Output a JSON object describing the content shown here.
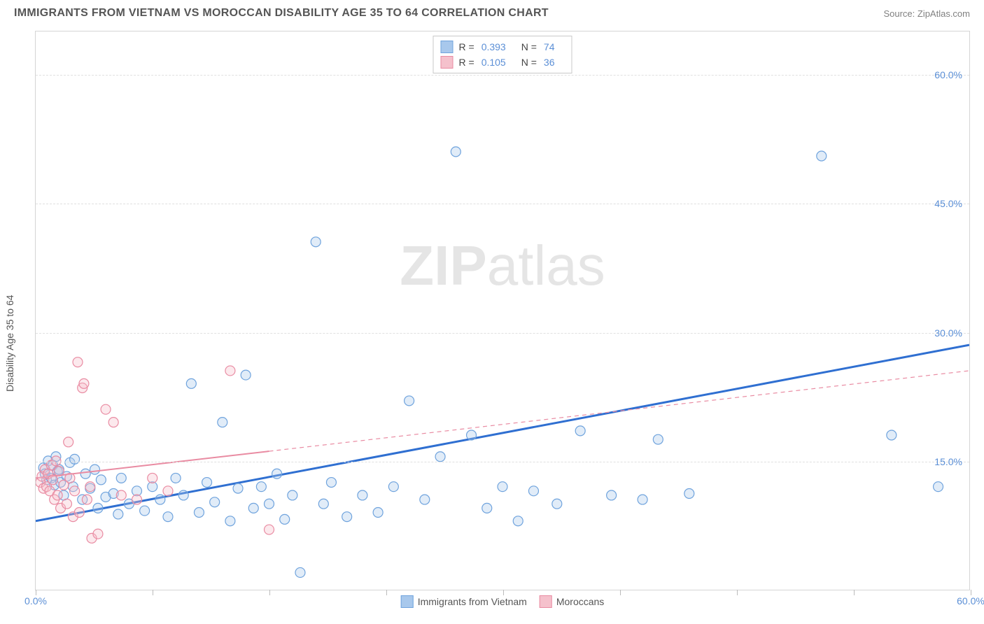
{
  "title": "IMMIGRANTS FROM VIETNAM VS MOROCCAN DISABILITY AGE 35 TO 64 CORRELATION CHART",
  "source_label": "Source: ",
  "source_name": "ZipAtlas.com",
  "y_axis_label": "Disability Age 35 to 64",
  "watermark_a": "ZIP",
  "watermark_b": "atlas",
  "chart": {
    "type": "scatter",
    "xlim": [
      0,
      60
    ],
    "ylim": [
      0,
      65
    ],
    "background_color": "#ffffff",
    "grid_color": "#e0e0e0",
    "axis_color": "#d5d5d5",
    "tick_label_color": "#5b8fd6",
    "y_ticks": [
      15,
      30,
      45,
      60
    ],
    "y_tick_labels": [
      "15.0%",
      "30.0%",
      "45.0%",
      "60.0%"
    ],
    "x_tick_positions": [
      0,
      7.5,
      15,
      22.5,
      30,
      37.5,
      45,
      52.5,
      60
    ],
    "x_start_label": "0.0%",
    "x_end_label": "60.0%",
    "marker_radius": 7,
    "marker_stroke_width": 1.2,
    "marker_fill_opacity": 0.35,
    "trend_line_width_solid": 3,
    "trend_line_width_dash": 1.2,
    "series": [
      {
        "name": "Immigrants from Vietnam",
        "color_fill": "#a8c8ec",
        "color_stroke": "#6fa3dd",
        "r_value": "0.393",
        "n_value": "74",
        "trend": {
          "x1": 0,
          "y1": 8.0,
          "x2": 60,
          "y2": 28.5,
          "solid_until_x": 60,
          "color": "#2f6fd1"
        },
        "points": [
          [
            0.5,
            14.2
          ],
          [
            0.6,
            13.5
          ],
          [
            0.7,
            12.8
          ],
          [
            0.8,
            15.0
          ],
          [
            1.0,
            13.0
          ],
          [
            1.1,
            14.5
          ],
          [
            1.2,
            12.2
          ],
          [
            1.3,
            15.5
          ],
          [
            1.4,
            13.8
          ],
          [
            1.5,
            14.0
          ],
          [
            1.6,
            12.5
          ],
          [
            1.8,
            11.0
          ],
          [
            2.0,
            13.2
          ],
          [
            2.2,
            14.8
          ],
          [
            2.4,
            12.0
          ],
          [
            2.5,
            15.2
          ],
          [
            3.0,
            10.5
          ],
          [
            3.2,
            13.5
          ],
          [
            3.5,
            11.8
          ],
          [
            3.8,
            14.0
          ],
          [
            4.0,
            9.5
          ],
          [
            4.2,
            12.8
          ],
          [
            4.5,
            10.8
          ],
          [
            5.0,
            11.2
          ],
          [
            5.3,
            8.8
          ],
          [
            5.5,
            13.0
          ],
          [
            6.0,
            10.0
          ],
          [
            6.5,
            11.5
          ],
          [
            7.0,
            9.2
          ],
          [
            7.5,
            12.0
          ],
          [
            8.0,
            10.5
          ],
          [
            8.5,
            8.5
          ],
          [
            9.0,
            13.0
          ],
          [
            9.5,
            11.0
          ],
          [
            10.0,
            24.0
          ],
          [
            10.5,
            9.0
          ],
          [
            11.0,
            12.5
          ],
          [
            11.5,
            10.2
          ],
          [
            12.0,
            19.5
          ],
          [
            12.5,
            8.0
          ],
          [
            13.0,
            11.8
          ],
          [
            13.5,
            25.0
          ],
          [
            14.0,
            9.5
          ],
          [
            14.5,
            12.0
          ],
          [
            15.0,
            10.0
          ],
          [
            15.5,
            13.5
          ],
          [
            16.0,
            8.2
          ],
          [
            16.5,
            11.0
          ],
          [
            17.0,
            2.0
          ],
          [
            18.0,
            40.5
          ],
          [
            18.5,
            10.0
          ],
          [
            19.0,
            12.5
          ],
          [
            20.0,
            8.5
          ],
          [
            21.0,
            11.0
          ],
          [
            22.0,
            9.0
          ],
          [
            23.0,
            12.0
          ],
          [
            24.0,
            22.0
          ],
          [
            25.0,
            10.5
          ],
          [
            26.0,
            15.5
          ],
          [
            27.0,
            51.0
          ],
          [
            28.0,
            18.0
          ],
          [
            29.0,
            9.5
          ],
          [
            30.0,
            12.0
          ],
          [
            31.0,
            8.0
          ],
          [
            32.0,
            11.5
          ],
          [
            33.5,
            10.0
          ],
          [
            35.0,
            18.5
          ],
          [
            37.0,
            11.0
          ],
          [
            39.0,
            10.5
          ],
          [
            40.0,
            17.5
          ],
          [
            42.0,
            11.2
          ],
          [
            50.5,
            50.5
          ],
          [
            55.0,
            18.0
          ],
          [
            58.0,
            12.0
          ]
        ]
      },
      {
        "name": "Moroccans",
        "color_fill": "#f5c1cc",
        "color_stroke": "#e98ba2",
        "r_value": "0.105",
        "n_value": "36",
        "trend": {
          "x1": 0,
          "y1": 13.0,
          "x2": 60,
          "y2": 25.5,
          "solid_until_x": 15,
          "color": "#e98ba2"
        },
        "points": [
          [
            0.3,
            12.5
          ],
          [
            0.4,
            13.2
          ],
          [
            0.5,
            11.8
          ],
          [
            0.6,
            14.0
          ],
          [
            0.7,
            12.0
          ],
          [
            0.8,
            13.5
          ],
          [
            0.9,
            11.5
          ],
          [
            1.0,
            14.5
          ],
          [
            1.1,
            12.8
          ],
          [
            1.2,
            10.5
          ],
          [
            1.3,
            15.0
          ],
          [
            1.4,
            11.0
          ],
          [
            1.5,
            13.8
          ],
          [
            1.6,
            9.5
          ],
          [
            1.8,
            12.2
          ],
          [
            2.0,
            10.0
          ],
          [
            2.1,
            17.2
          ],
          [
            2.2,
            13.0
          ],
          [
            2.4,
            8.5
          ],
          [
            2.5,
            11.5
          ],
          [
            2.7,
            26.5
          ],
          [
            2.8,
            9.0
          ],
          [
            3.0,
            23.5
          ],
          [
            3.1,
            24.0
          ],
          [
            3.3,
            10.5
          ],
          [
            3.5,
            12.0
          ],
          [
            3.6,
            6.0
          ],
          [
            4.0,
            6.5
          ],
          [
            4.5,
            21.0
          ],
          [
            5.0,
            19.5
          ],
          [
            5.5,
            11.0
          ],
          [
            6.5,
            10.5
          ],
          [
            7.5,
            13.0
          ],
          [
            8.5,
            11.5
          ],
          [
            12.5,
            25.5
          ],
          [
            15.0,
            7.0
          ]
        ]
      }
    ]
  },
  "legend_r_label": "R =",
  "legend_n_label": "N ="
}
